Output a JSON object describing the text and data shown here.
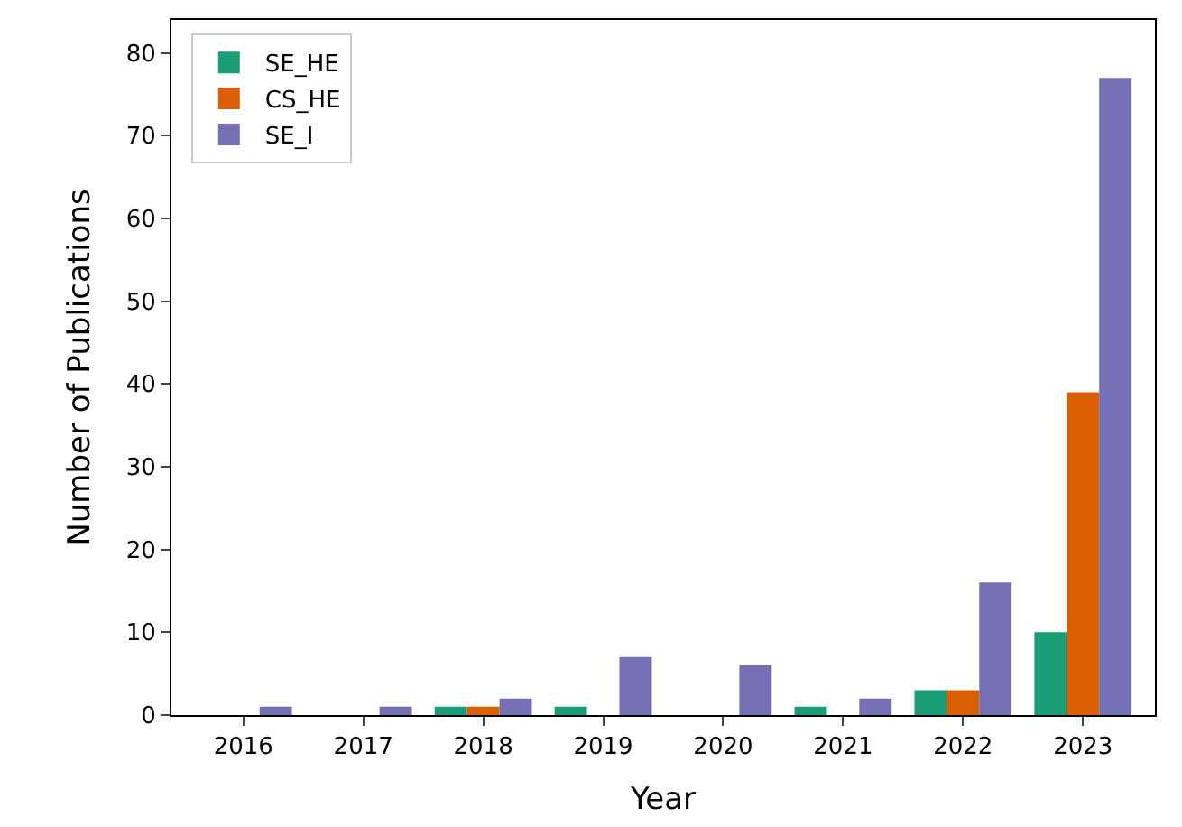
{
  "chart_data": {
    "type": "bar",
    "xlabel": "Year",
    "ylabel": "Number of Publications",
    "categories": [
      "2016",
      "2017",
      "2018",
      "2019",
      "2020",
      "2021",
      "2022",
      "2023"
    ],
    "series": [
      {
        "name": "SE_HE",
        "color": "#1b9e77",
        "values": [
          0,
          0,
          1,
          1,
          0,
          1,
          3,
          10
        ]
      },
      {
        "name": "CS_HE",
        "color": "#d95f02",
        "values": [
          0,
          0,
          1,
          0,
          0,
          0,
          3,
          39
        ]
      },
      {
        "name": "SE_I",
        "color": "#7570b3",
        "values": [
          1,
          1,
          2,
          7,
          6,
          2,
          16,
          77
        ]
      }
    ],
    "ylim": [
      0,
      84
    ],
    "yticks": [
      0,
      10,
      20,
      30,
      40,
      50,
      60,
      70,
      80
    ],
    "legend": "top left"
  }
}
